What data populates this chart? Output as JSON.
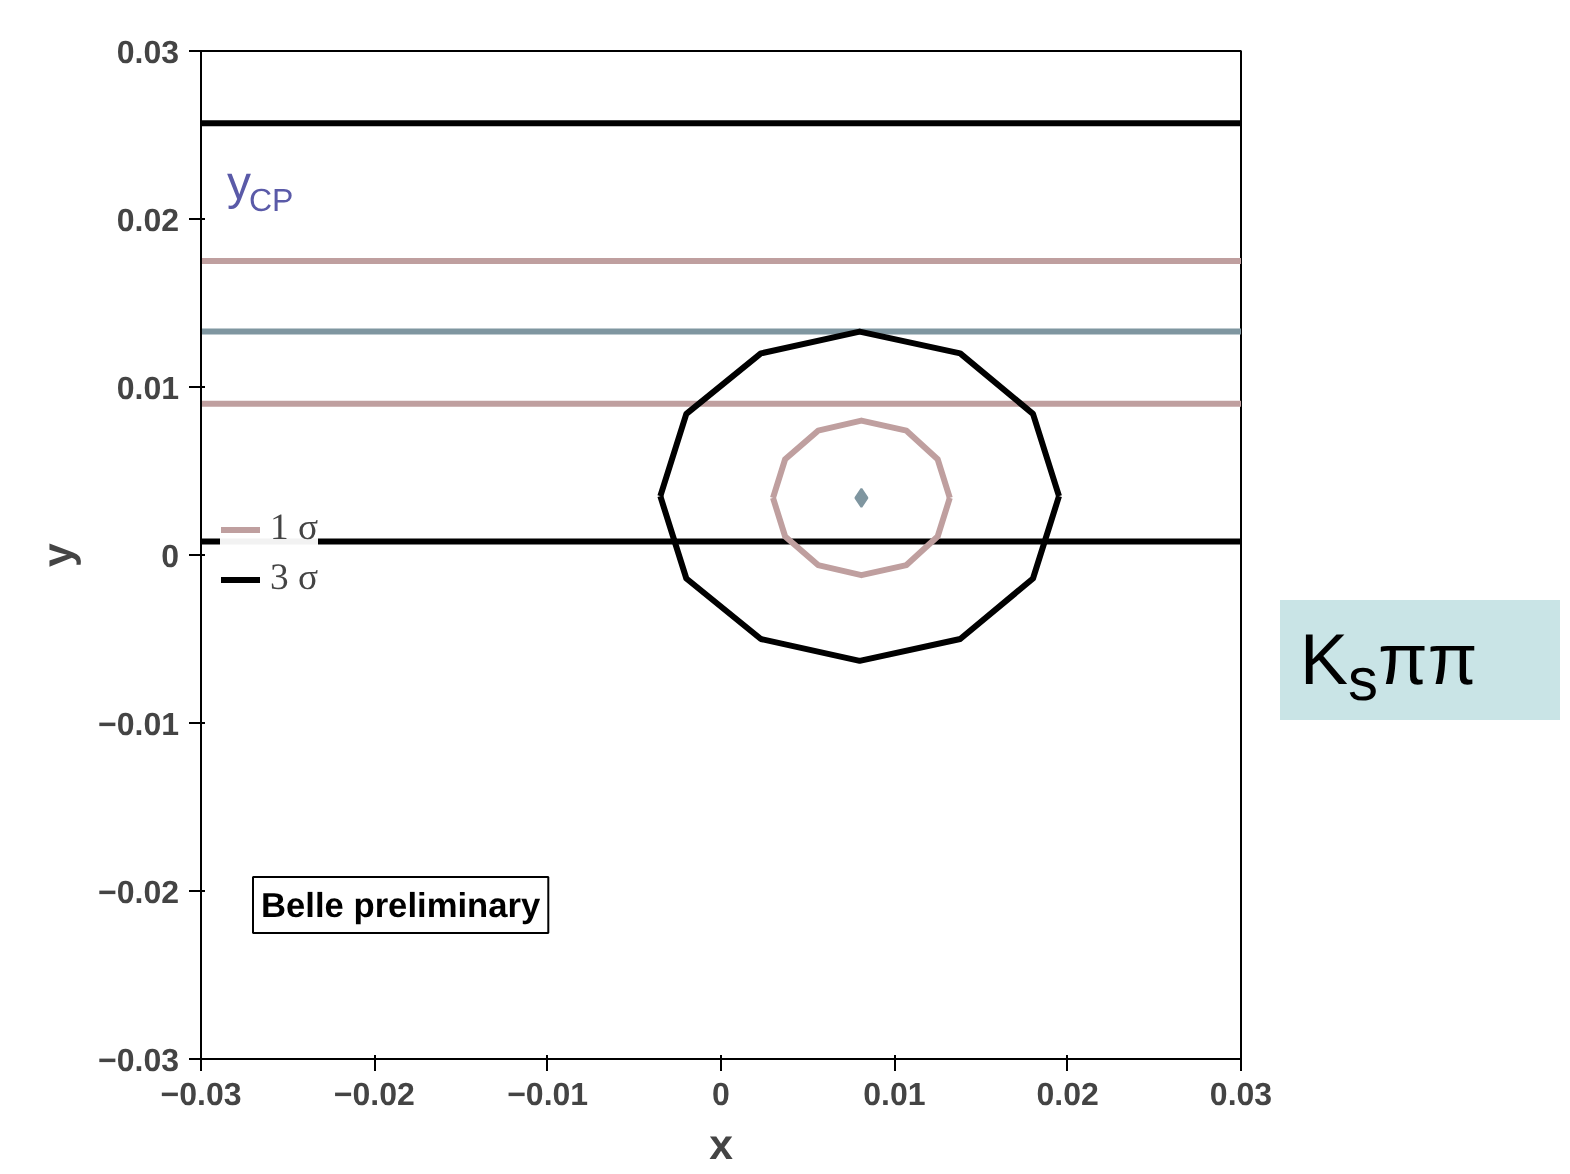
{
  "chart_data": {
    "type": "line",
    "xlabel": "x",
    "ylabel": "y",
    "xlim": [
      -0.03,
      0.03
    ],
    "ylim": [
      -0.03,
      0.03
    ],
    "xticks": [
      -0.03,
      -0.02,
      -0.01,
      0,
      0.01,
      0.02,
      0.03
    ],
    "yticks": [
      -0.03,
      -0.02,
      -0.01,
      0,
      0.01,
      0.02,
      0.03
    ],
    "grid": false,
    "legend": "left",
    "series": [
      {
        "color": "#000000",
        "x": [
          -0.03,
          0.03
        ],
        "values": [
          0.0257,
          0.0257
        ]
      },
      {
        "color": "#bf9f9f",
        "x": [
          -0.03,
          0.03
        ],
        "values": [
          0.0175,
          0.0175
        ]
      },
      {
        "color": "#7f96a0",
        "x": [
          -0.03,
          0.03
        ],
        "values": [
          0.0133,
          0.0133
        ]
      },
      {
        "color": "#bf9f9f",
        "x": [
          -0.03,
          0.03
        ],
        "values": [
          0.009,
          0.009
        ]
      },
      {
        "color": "#000000",
        "x": [
          -0.03,
          0.03
        ],
        "values": [
          0.0008,
          0.0008
        ]
      },
      {
        "name": "1 σ",
        "color": "#bf9f9f",
        "x": [
          0.003,
          0.0037,
          0.0056,
          0.0081,
          0.0107,
          0.0125,
          0.0132
        ],
        "values": [
          0.0034,
          0.0057,
          0.0074,
          0.008,
          0.0074,
          0.0057,
          0.0034
        ]
      },
      {
        "color": "#bf9f9f",
        "x": [
          0.003,
          0.0037,
          0.0056,
          0.0081,
          0.0107,
          0.0125,
          0.0132
        ],
        "values": [
          0.0034,
          0.0011,
          -0.0006,
          -0.0012,
          -0.0006,
          0.0011,
          0.0034
        ]
      },
      {
        "name": "3 σ",
        "color": "#000000",
        "x": [
          -0.0035,
          -0.002,
          0.0023,
          0.008,
          0.0138,
          0.018,
          0.0195
        ],
        "values": [
          0.0035,
          0.0084,
          0.012,
          0.0133,
          0.012,
          0.0084,
          0.0035
        ]
      },
      {
        "color": "#000000",
        "x": [
          -0.0035,
          -0.002,
          0.0023,
          0.008,
          0.0138,
          0.018,
          0.0195
        ],
        "values": [
          0.0035,
          -0.0014,
          -0.005,
          -0.0063,
          -0.005,
          -0.0014,
          0.0035
        ]
      },
      {
        "type": "scatter",
        "color": "#7f96a0",
        "x": [
          0.0081
        ],
        "values": [
          0.0034
        ]
      }
    ],
    "annotations": [
      "y$_{CP}$",
      "Belle preliminary",
      "K$_{s}$ππ"
    ]
  }
}
